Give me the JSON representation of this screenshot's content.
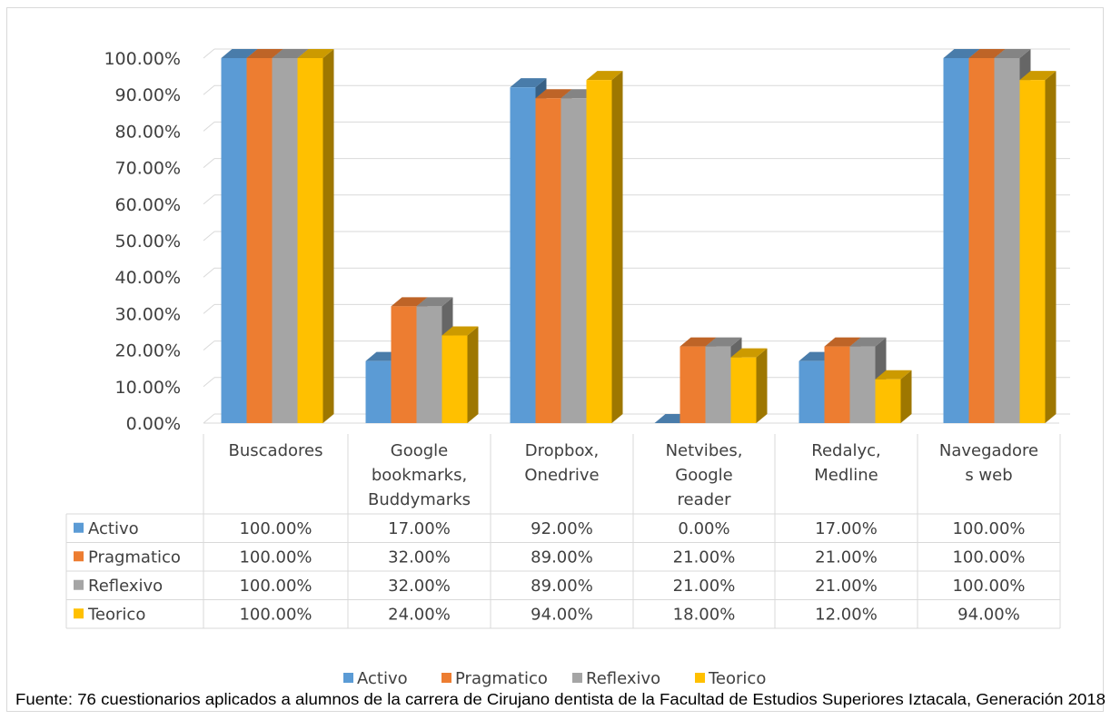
{
  "chart_data": {
    "type": "bar",
    "style": "3d-clustered-column-with-data-table",
    "categories": [
      [
        "Buscadores"
      ],
      [
        "Google",
        "bookmarks,",
        "Buddymarks"
      ],
      [
        "Dropbox,",
        "Onedrive"
      ],
      [
        "Netvibes,",
        "Google",
        "reader"
      ],
      [
        "Redalyc,",
        "Medline"
      ],
      [
        "Navegadore",
        "s web"
      ]
    ],
    "series": [
      {
        "name": "Activo",
        "color": "#5b9bd5",
        "values": [
          100,
          17,
          92,
          0,
          17,
          100
        ],
        "labels": [
          "100.00%",
          "17.00%",
          "92.00%",
          "0.00%",
          "17.00%",
          "100.00%"
        ]
      },
      {
        "name": "Pragmatico",
        "color": "#ed7d31",
        "values": [
          100,
          32,
          89,
          21,
          21,
          100
        ],
        "labels": [
          "100.00%",
          "32.00%",
          "89.00%",
          "21.00%",
          "21.00%",
          "100.00%"
        ]
      },
      {
        "name": "Reflexivo",
        "color": "#a5a5a5",
        "values": [
          100,
          32,
          89,
          21,
          21,
          100
        ],
        "labels": [
          "100.00%",
          "32.00%",
          "89.00%",
          "21.00%",
          "21.00%",
          "100.00%"
        ]
      },
      {
        "name": "Teorico",
        "color": "#ffc000",
        "values": [
          100,
          24,
          94,
          18,
          12,
          94
        ],
        "labels": [
          "100.00%",
          "24.00%",
          "94.00%",
          "18.00%",
          "12.00%",
          "94.00%"
        ]
      }
    ],
    "ylim": [
      0,
      100
    ],
    "yticks": [
      "0.00%",
      "10.00%",
      "20.00%",
      "30.00%",
      "40.00%",
      "50.00%",
      "60.00%",
      "70.00%",
      "80.00%",
      "90.00%",
      "100.00%"
    ],
    "grid": true,
    "legend": "bottom",
    "source": "Fuente: 76  cuestionarios aplicados a alumnos de la carrera de Cirujano dentista de la Facultad de Estudios Superiores Iztacala,  Generación 2018"
  }
}
